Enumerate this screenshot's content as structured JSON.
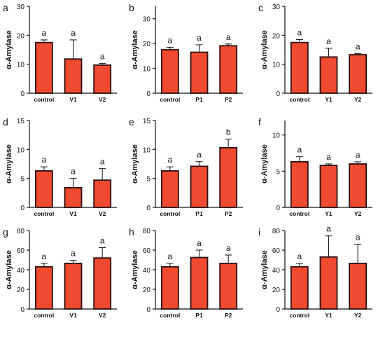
{
  "chart_data": [
    {
      "panel": "a",
      "type": "bar",
      "categories": [
        "control",
        "V1",
        "V2"
      ],
      "values": [
        17.5,
        11.8,
        9.7
      ],
      "errors": [
        0.9,
        6.6,
        0.6
      ],
      "letters": [
        "a",
        "a",
        "a"
      ],
      "ylabel": "α-Amylase",
      "ylim": [
        0,
        30
      ],
      "yticks": [
        0,
        10,
        20,
        30
      ]
    },
    {
      "panel": "b",
      "type": "bar",
      "categories": [
        "control",
        "P1",
        "P2"
      ],
      "values": [
        17.5,
        16.5,
        19.1
      ],
      "errors": [
        1.0,
        3.0,
        0.7
      ],
      "letters": [
        "a",
        "a",
        "a"
      ],
      "ylabel": "α-Amylase",
      "ylim": [
        0,
        35
      ],
      "yticks": [
        0,
        10,
        20,
        30
      ]
    },
    {
      "panel": "c",
      "type": "bar",
      "categories": [
        "control",
        "Y1",
        "Y2"
      ],
      "values": [
        17.5,
        12.5,
        13.3
      ],
      "errors": [
        1.0,
        3.0,
        0.4
      ],
      "letters": [
        "a",
        "a",
        "a"
      ],
      "ylabel": "α-Amylase",
      "ylim": [
        0,
        30
      ],
      "yticks": [
        0,
        10,
        20,
        30
      ]
    },
    {
      "panel": "d",
      "type": "bar",
      "categories": [
        "control",
        "V1",
        "V2"
      ],
      "values": [
        6.3,
        3.4,
        4.7
      ],
      "errors": [
        0.7,
        1.6,
        2.0
      ],
      "letters": [
        "a",
        "a",
        "a"
      ],
      "ylabel": "α-Amylase",
      "ylim": [
        0,
        15
      ],
      "yticks": [
        0,
        5,
        10,
        15
      ]
    },
    {
      "panel": "e",
      "type": "bar",
      "categories": [
        "control",
        "P1",
        "P2"
      ],
      "values": [
        6.3,
        7.1,
        10.3
      ],
      "errors": [
        0.7,
        0.8,
        1.5
      ],
      "letters": [
        "a",
        "a",
        "b"
      ],
      "ylabel": "α-Amylase",
      "ylim": [
        0,
        15
      ],
      "yticks": [
        0,
        5,
        10,
        15
      ]
    },
    {
      "panel": "f",
      "type": "bar",
      "categories": [
        "control",
        "Y1",
        "Y2"
      ],
      "values": [
        6.3,
        5.8,
        6.0
      ],
      "errors": [
        0.7,
        0.2,
        0.3
      ],
      "letters": [
        "a",
        "a",
        "a"
      ],
      "ylabel": "α-Amylase",
      "ylim": [
        0,
        12
      ],
      "yticks": [
        0,
        5,
        10
      ]
    },
    {
      "panel": "g",
      "type": "bar",
      "categories": [
        "control",
        "V1",
        "V2"
      ],
      "values": [
        43,
        46.5,
        52
      ],
      "errors": [
        3.5,
        3.0,
        10.5
      ],
      "letters": [
        "a",
        "a",
        "a"
      ],
      "ylabel": "α-Amylase",
      "ylim": [
        0,
        80
      ],
      "yticks": [
        0,
        20,
        40,
        60,
        80
      ]
    },
    {
      "panel": "h",
      "type": "bar",
      "categories": [
        "control",
        "P1",
        "P2"
      ],
      "values": [
        43,
        52.5,
        46.5
      ],
      "errors": [
        3.5,
        7.5,
        8.5
      ],
      "letters": [
        "a",
        "a",
        "a"
      ],
      "ylabel": "α-Amylase",
      "ylim": [
        0,
        80
      ],
      "yticks": [
        0,
        20,
        40,
        60,
        80
      ]
    },
    {
      "panel": "i",
      "type": "bar",
      "categories": [
        "control",
        "Y1",
        "Y2"
      ],
      "values": [
        43,
        53,
        46.5
      ],
      "errors": [
        3.5,
        21.5,
        19.5
      ],
      "letters": [
        "a",
        "a",
        "a"
      ],
      "ylabel": "α-Amylase",
      "ylim": [
        0,
        80
      ],
      "yticks": [
        0,
        20,
        40,
        60,
        80
      ]
    }
  ],
  "colors": {
    "bar_fill": "#f04a30",
    "bar_edge": "#2a1010",
    "axis": "#111111"
  }
}
